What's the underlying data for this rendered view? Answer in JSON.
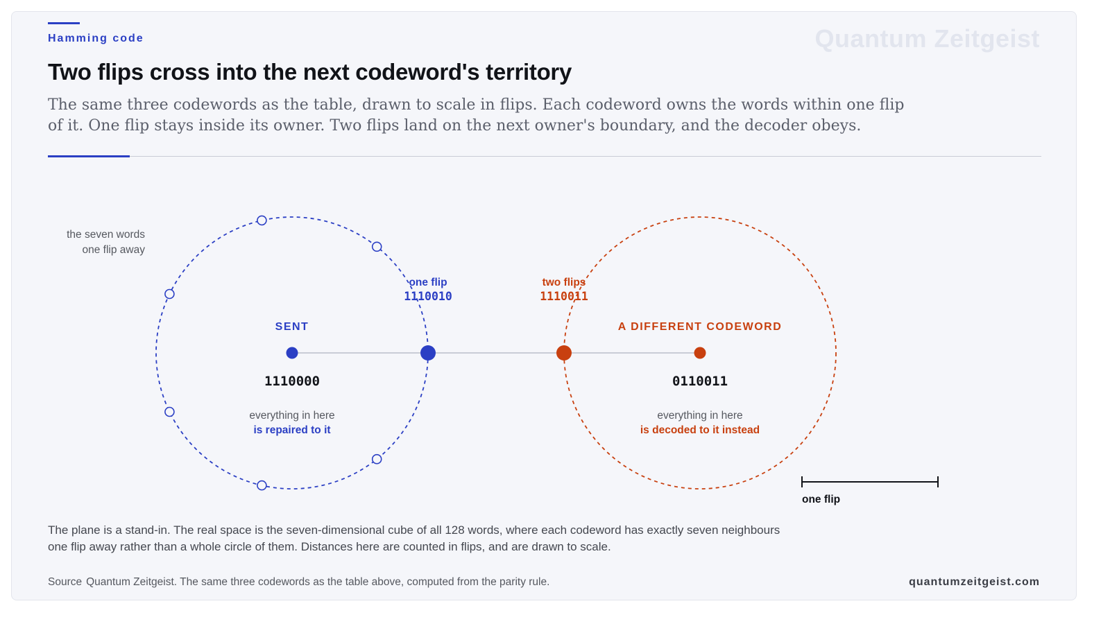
{
  "header": {
    "eyebrow": "Hamming code",
    "watermark": "Quantum Zeitgeist",
    "title": "Two flips cross into the next codeword's territory",
    "subtitle": "The same three codewords as the table, drawn to scale in flips. Each codeword owns the words within one flip of it. One flip stays inside its owner. Two flips land on the next owner's boundary, and the decoder obeys."
  },
  "diagram": {
    "neighbors_label": [
      "the seven words",
      "one flip away"
    ],
    "sent": {
      "label": "SENT",
      "code": "1110000",
      "caption_line1": "everything in here",
      "caption_line2": "is repaired to it",
      "color": "#2b3fc4"
    },
    "one_flip": {
      "label": "one flip",
      "code": "1110010",
      "color": "#2b3fc4"
    },
    "two_flips": {
      "label": "two flips",
      "code": "1110011",
      "color": "#c8400f"
    },
    "different": {
      "label": "A DIFFERENT CODEWORD",
      "code": "0110011",
      "caption_line1": "everything in here",
      "caption_line2": "is decoded to it instead",
      "color": "#c8400f"
    },
    "scale_label": "one flip",
    "neighbor_count": 7
  },
  "footer": {
    "note": "The plane is a stand-in. The real space is the seven-dimensional cube of all 128 words, where each codeword has exactly seven neighbours one flip away rather than a whole circle of them. Distances here are counted in flips, and are drawn to scale.",
    "source_label": "Source",
    "source_text": "Quantum Zeitgeist. The same three codewords as the table above, computed from the parity rule.",
    "domain": "quantumzeitgeist.com"
  }
}
